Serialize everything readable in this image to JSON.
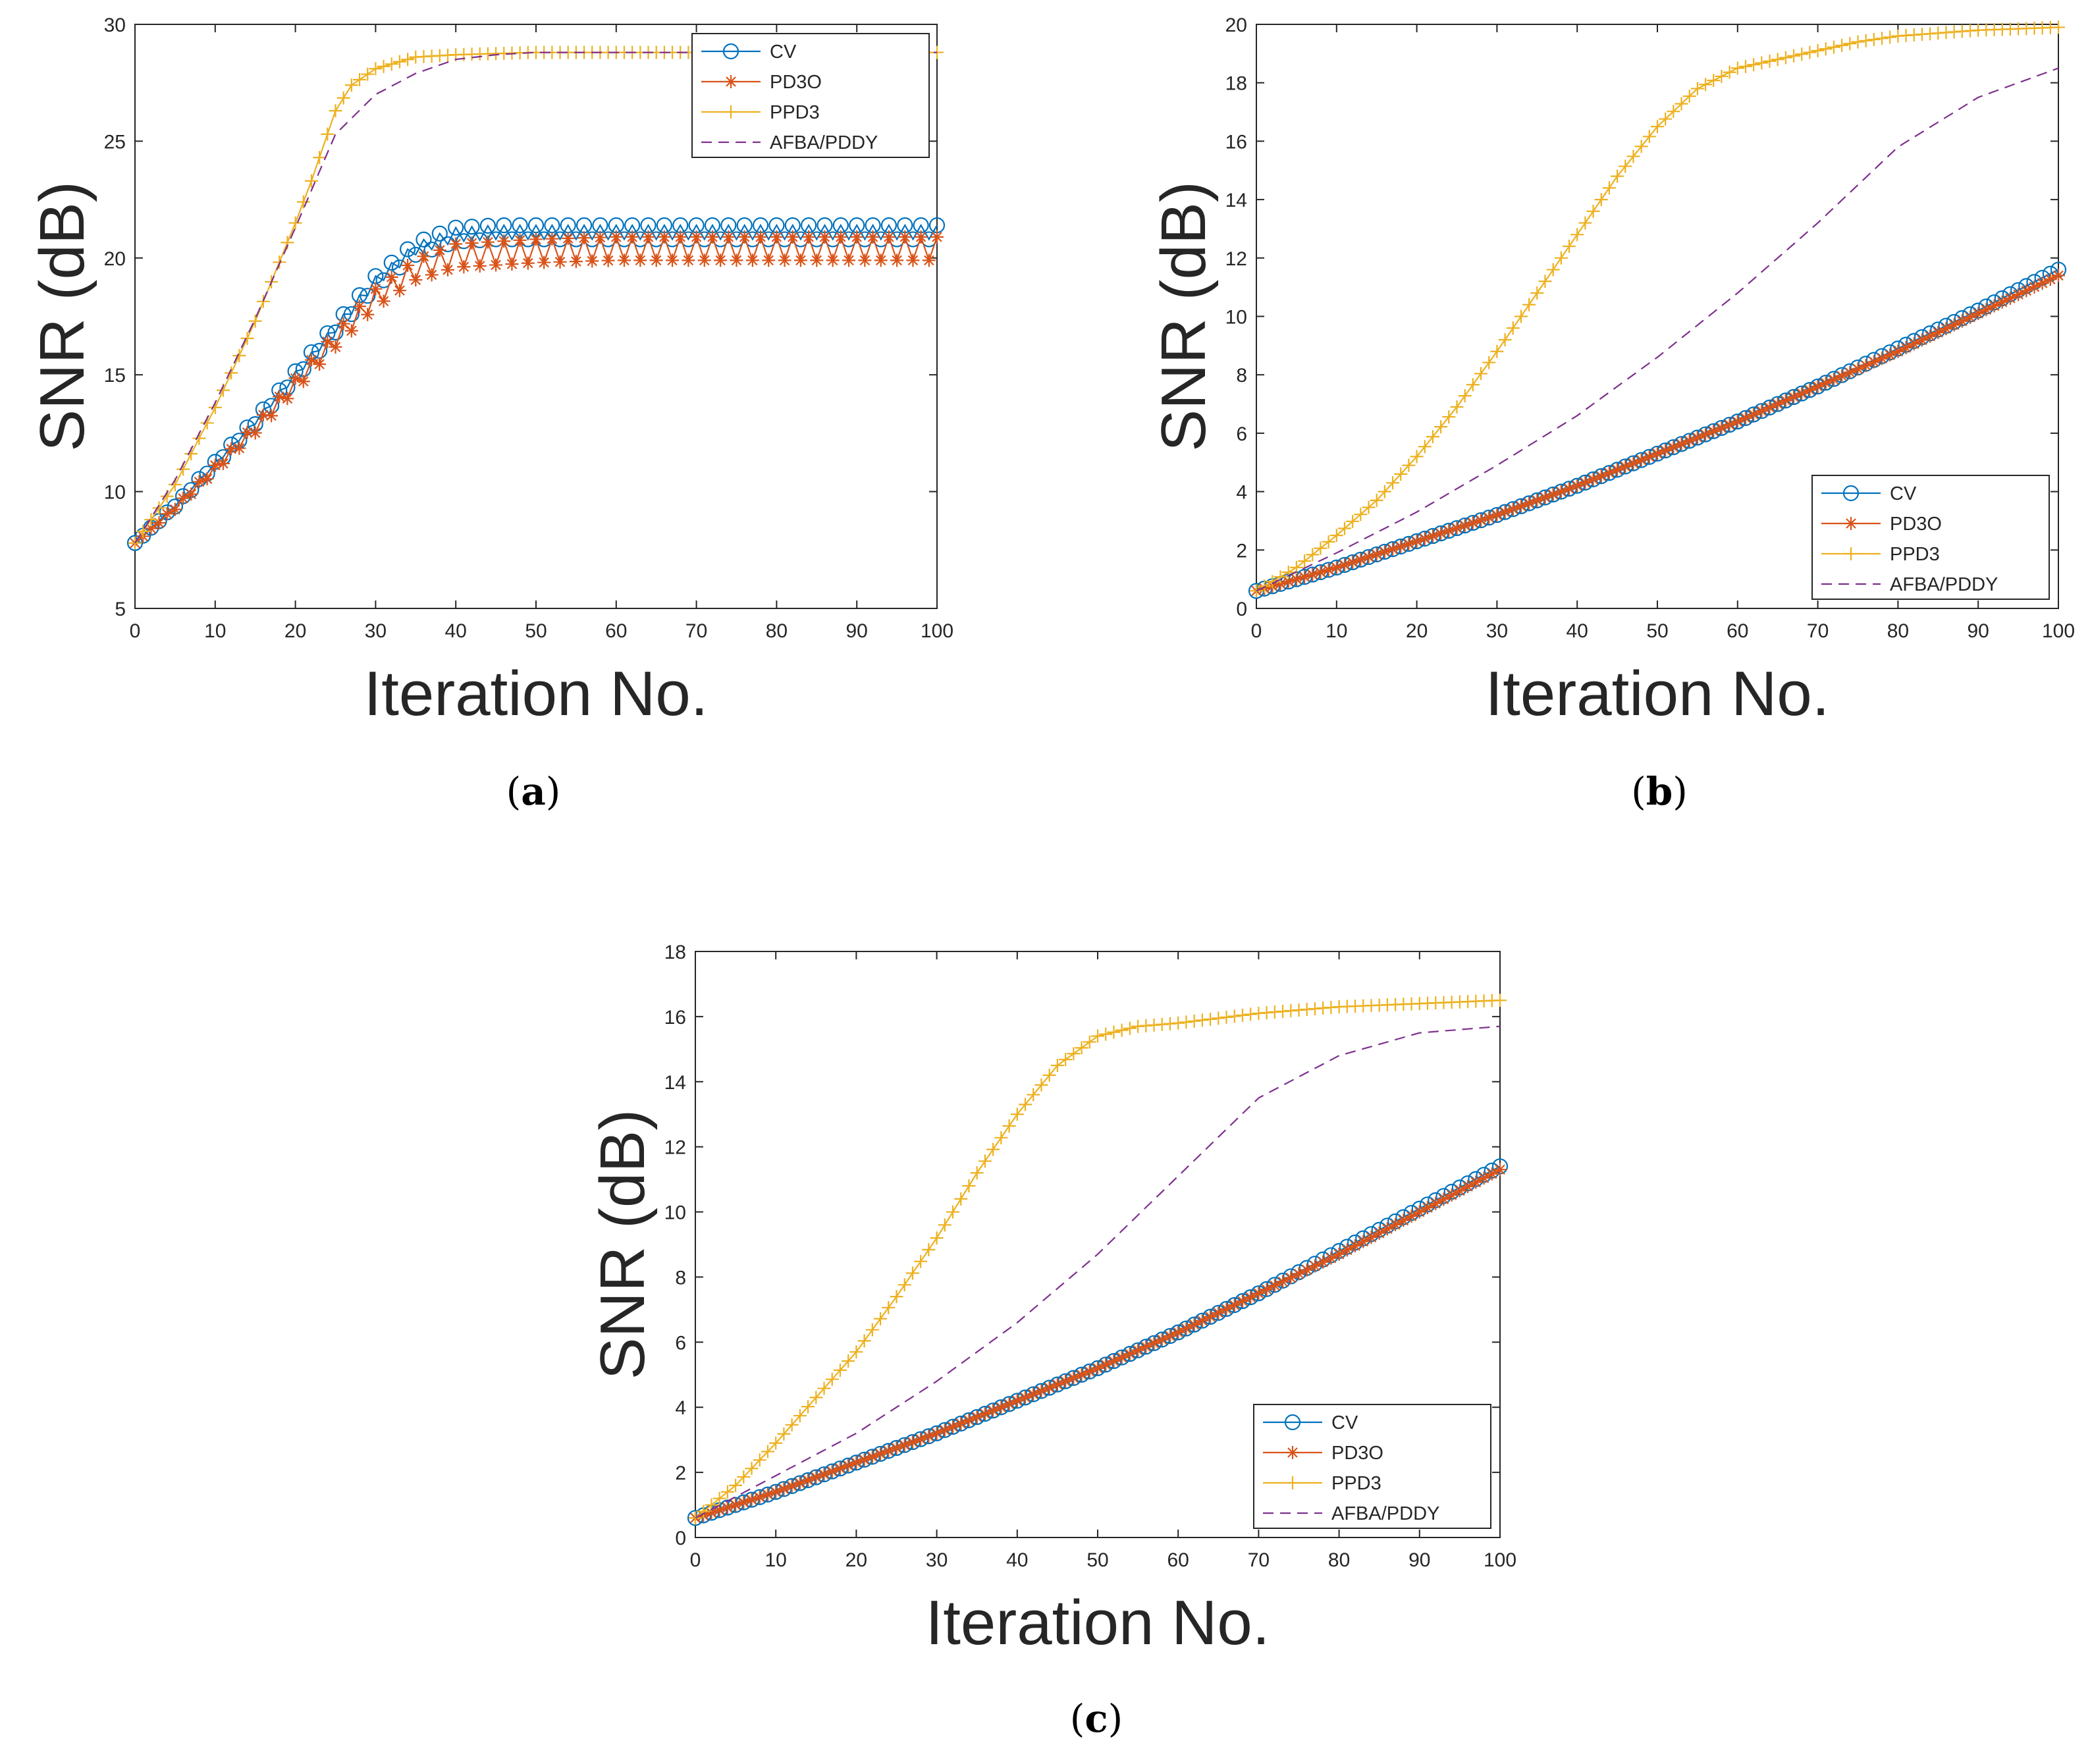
{
  "figure": {
    "colors": {
      "cv": "#0072BD",
      "pd3o": "#D95319",
      "ppd3": "#EDB120",
      "afba": "#7E2F8E",
      "axis": "#262626",
      "grid_text": "#262626"
    }
  },
  "chart_data": [
    {
      "id": "a",
      "type": "line",
      "caption_letter": "a",
      "caption_open": "(",
      "caption_close": ")",
      "xlabel": "Iteration   No.",
      "ylabel": "SNR   (dB)",
      "xlim": [
        0,
        100
      ],
      "ylim": [
        5,
        30
      ],
      "xticks": [
        0,
        10,
        20,
        30,
        40,
        50,
        60,
        70,
        80,
        90,
        100
      ],
      "yticks": [
        5,
        10,
        15,
        20,
        25,
        30
      ],
      "legend_position": "top-right",
      "series": [
        {
          "name": "CV",
          "marker": "circle",
          "style": "oscillating",
          "points": [
            [
              0,
              7.8
            ],
            [
              5,
              9.4
            ],
            [
              10,
              11.2
            ],
            [
              15,
              13.0
            ],
            [
              20,
              15.0
            ],
            [
              25,
              17.0
            ],
            [
              30,
              19.0
            ],
            [
              35,
              20.4
            ],
            [
              40,
              21.0
            ],
            [
              45,
              21.1
            ],
            [
              50,
              21.1
            ],
            [
              60,
              21.1
            ],
            [
              70,
              21.1
            ],
            [
              80,
              21.1
            ],
            [
              90,
              21.1
            ],
            [
              100,
              21.1
            ]
          ],
          "amp_full": 0.3
        },
        {
          "name": "PD3O",
          "marker": "asterisk",
          "style": "oscillating",
          "points": [
            [
              0,
              7.8
            ],
            [
              5,
              9.3
            ],
            [
              10,
              11.0
            ],
            [
              15,
              12.7
            ],
            [
              20,
              14.6
            ],
            [
              25,
              16.5
            ],
            [
              30,
              18.3
            ],
            [
              35,
              19.5
            ],
            [
              40,
              20.1
            ],
            [
              45,
              20.2
            ],
            [
              50,
              20.3
            ],
            [
              60,
              20.4
            ],
            [
              70,
              20.4
            ],
            [
              80,
              20.4
            ],
            [
              90,
              20.4
            ],
            [
              100,
              20.4
            ]
          ],
          "amp_full": 0.5
        },
        {
          "name": "PPD3",
          "marker": "plus",
          "style": "smooth",
          "points": [
            [
              0,
              7.8
            ],
            [
              5,
              10.3
            ],
            [
              10,
              13.6
            ],
            [
              15,
              17.3
            ],
            [
              20,
              21.5
            ],
            [
              22,
              23.3
            ],
            [
              25,
              26.3
            ],
            [
              27,
              27.4
            ],
            [
              30,
              28.1
            ],
            [
              35,
              28.6
            ],
            [
              40,
              28.7
            ],
            [
              50,
              28.8
            ],
            [
              60,
              28.8
            ],
            [
              70,
              28.8
            ],
            [
              80,
              28.8
            ],
            [
              90,
              28.8
            ],
            [
              100,
              28.8
            ]
          ]
        },
        {
          "name": "AFBA/PDDY",
          "marker": "none",
          "style": "smooth",
          "dashed": true,
          "points": [
            [
              0,
              7.8
            ],
            [
              5,
              10.5
            ],
            [
              10,
              13.8
            ],
            [
              15,
              17.4
            ],
            [
              20,
              21.3
            ],
            [
              25,
              25.3
            ],
            [
              30,
              27.0
            ],
            [
              35,
              27.9
            ],
            [
              40,
              28.5
            ],
            [
              45,
              28.7
            ],
            [
              50,
              28.8
            ],
            [
              60,
              28.8
            ],
            [
              70,
              28.8
            ],
            [
              80,
              28.8
            ],
            [
              90,
              28.8
            ],
            [
              100,
              28.8
            ]
          ]
        }
      ]
    },
    {
      "id": "b",
      "type": "line",
      "caption_letter": "b",
      "caption_open": "(",
      "caption_close": ")",
      "xlabel": "Iteration   No.",
      "ylabel": "SNR   (dB)",
      "xlim": [
        0,
        100
      ],
      "ylim": [
        0,
        20
      ],
      "xticks": [
        0,
        10,
        20,
        30,
        40,
        50,
        60,
        70,
        80,
        90,
        100
      ],
      "yticks": [
        0,
        2,
        4,
        6,
        8,
        10,
        12,
        14,
        16,
        18,
        20
      ],
      "legend_position": "bottom-right",
      "series": [
        {
          "name": "CV",
          "marker": "circle",
          "style": "smooth",
          "points": [
            [
              0,
              0.6
            ],
            [
              10,
              1.4
            ],
            [
              20,
              2.3
            ],
            [
              30,
              3.2
            ],
            [
              40,
              4.2
            ],
            [
              50,
              5.3
            ],
            [
              60,
              6.4
            ],
            [
              70,
              7.6
            ],
            [
              80,
              8.9
            ],
            [
              90,
              10.2
            ],
            [
              100,
              11.6
            ]
          ]
        },
        {
          "name": "PD3O",
          "marker": "asterisk",
          "style": "smooth",
          "points": [
            [
              0,
              0.6
            ],
            [
              10,
              1.4
            ],
            [
              20,
              2.3
            ],
            [
              30,
              3.2
            ],
            [
              40,
              4.2
            ],
            [
              50,
              5.3
            ],
            [
              60,
              6.4
            ],
            [
              70,
              7.6
            ],
            [
              80,
              8.8
            ],
            [
              90,
              10.1
            ],
            [
              100,
              11.4
            ]
          ]
        },
        {
          "name": "PPD3",
          "marker": "plus",
          "style": "smooth",
          "points": [
            [
              0,
              0.6
            ],
            [
              5,
              1.4
            ],
            [
              10,
              2.5
            ],
            [
              15,
              3.7
            ],
            [
              20,
              5.2
            ],
            [
              25,
              6.9
            ],
            [
              30,
              8.8
            ],
            [
              35,
              10.8
            ],
            [
              40,
              12.8
            ],
            [
              45,
              14.8
            ],
            [
              50,
              16.5
            ],
            [
              55,
              17.8
            ],
            [
              60,
              18.5
            ],
            [
              65,
              18.8
            ],
            [
              70,
              19.1
            ],
            [
              75,
              19.4
            ],
            [
              80,
              19.6
            ],
            [
              90,
              19.8
            ],
            [
              100,
              19.9
            ]
          ]
        },
        {
          "name": "AFBA/PDDY",
          "marker": "none",
          "style": "smooth",
          "dashed": true,
          "points": [
            [
              0,
              0.6
            ],
            [
              10,
              1.9
            ],
            [
              20,
              3.3
            ],
            [
              30,
              4.9
            ],
            [
              40,
              6.6
            ],
            [
              50,
              8.6
            ],
            [
              60,
              10.8
            ],
            [
              70,
              13.2
            ],
            [
              80,
              15.8
            ],
            [
              90,
              17.5
            ],
            [
              100,
              18.5
            ]
          ]
        }
      ]
    },
    {
      "id": "c",
      "type": "line",
      "caption_letter": "c",
      "caption_open": "(",
      "caption_close": ")",
      "xlabel": "Iteration   No.",
      "ylabel": "SNR   (dB)",
      "xlim": [
        0,
        100
      ],
      "ylim": [
        0,
        18
      ],
      "xticks": [
        0,
        10,
        20,
        30,
        40,
        50,
        60,
        70,
        80,
        90,
        100
      ],
      "yticks": [
        0,
        2,
        4,
        6,
        8,
        10,
        12,
        14,
        16,
        18
      ],
      "legend_position": "bottom-right",
      "series": [
        {
          "name": "CV",
          "marker": "circle",
          "style": "smooth",
          "points": [
            [
              0,
              0.6
            ],
            [
              10,
              1.4
            ],
            [
              20,
              2.3
            ],
            [
              30,
              3.2
            ],
            [
              40,
              4.2
            ],
            [
              50,
              5.2
            ],
            [
              60,
              6.3
            ],
            [
              70,
              7.5
            ],
            [
              80,
              8.8
            ],
            [
              90,
              10.1
            ],
            [
              100,
              11.4
            ]
          ]
        },
        {
          "name": "PD3O",
          "marker": "asterisk",
          "style": "smooth",
          "points": [
            [
              0,
              0.6
            ],
            [
              10,
              1.4
            ],
            [
              20,
              2.3
            ],
            [
              30,
              3.2
            ],
            [
              40,
              4.2
            ],
            [
              50,
              5.2
            ],
            [
              60,
              6.3
            ],
            [
              70,
              7.5
            ],
            [
              80,
              8.7
            ],
            [
              90,
              10.0
            ],
            [
              100,
              11.3
            ]
          ]
        },
        {
          "name": "PPD3",
          "marker": "plus",
          "style": "smooth",
          "points": [
            [
              0,
              0.6
            ],
            [
              5,
              1.6
            ],
            [
              10,
              2.9
            ],
            [
              15,
              4.3
            ],
            [
              20,
              5.7
            ],
            [
              25,
              7.4
            ],
            [
              30,
              9.2
            ],
            [
              35,
              11.2
            ],
            [
              40,
              13.0
            ],
            [
              45,
              14.5
            ],
            [
              50,
              15.4
            ],
            [
              55,
              15.7
            ],
            [
              60,
              15.8
            ],
            [
              70,
              16.1
            ],
            [
              80,
              16.3
            ],
            [
              90,
              16.4
            ],
            [
              100,
              16.5
            ]
          ]
        },
        {
          "name": "AFBA/PDDY",
          "marker": "none",
          "style": "smooth",
          "dashed": true,
          "points": [
            [
              0,
              0.6
            ],
            [
              10,
              1.9
            ],
            [
              20,
              3.2
            ],
            [
              30,
              4.8
            ],
            [
              40,
              6.6
            ],
            [
              50,
              8.7
            ],
            [
              60,
              11.1
            ],
            [
              70,
              13.5
            ],
            [
              80,
              14.8
            ],
            [
              90,
              15.5
            ],
            [
              100,
              15.7
            ]
          ]
        }
      ]
    }
  ]
}
